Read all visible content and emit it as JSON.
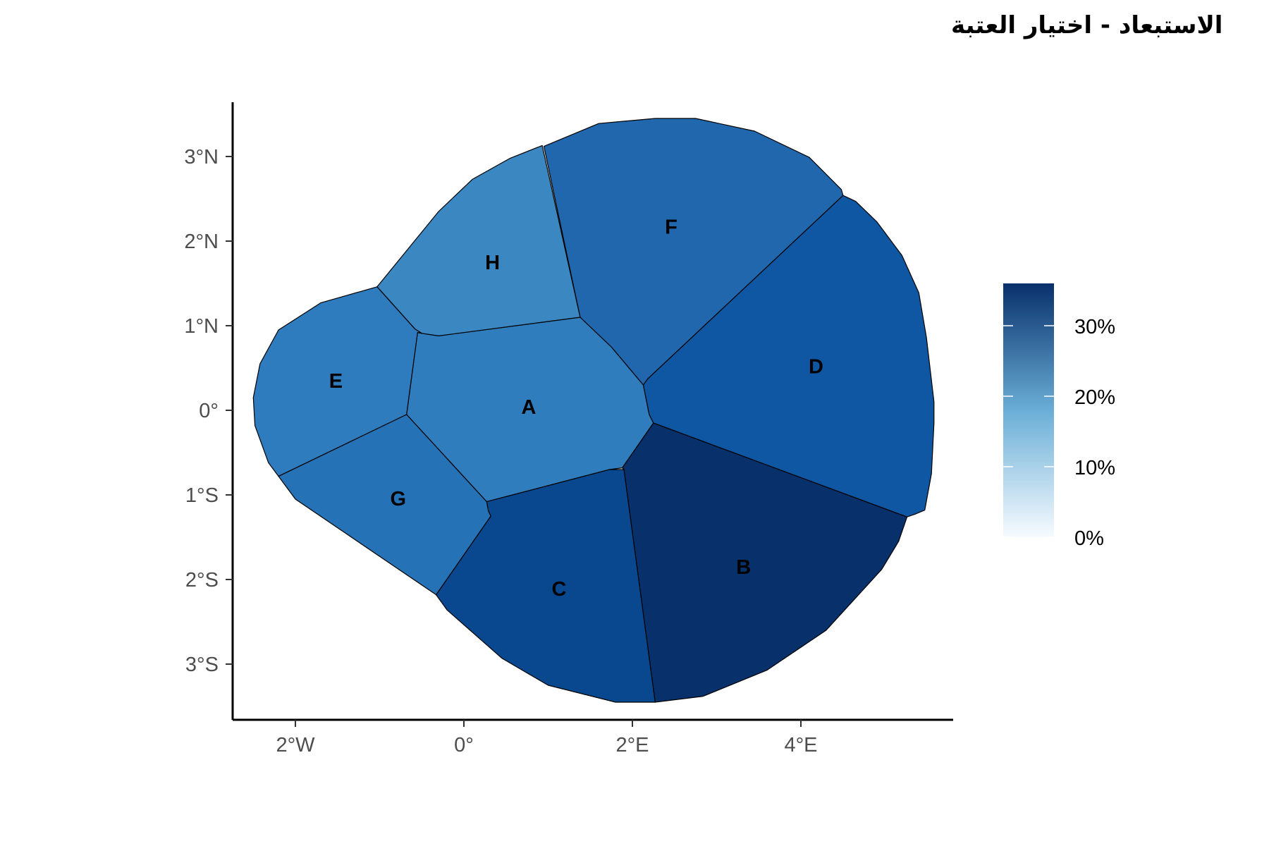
{
  "title": "الاستبعاد - اختيار العتبة",
  "map_data": {
    "type": "choropleth",
    "x_ticks": [
      {
        "value": -2,
        "label": "2°W"
      },
      {
        "value": 0,
        "label": "0°"
      },
      {
        "value": 2,
        "label": "2°E"
      },
      {
        "value": 4,
        "label": "4°E"
      }
    ],
    "y_ticks": [
      {
        "value": 3,
        "label": "3°N"
      },
      {
        "value": 2,
        "label": "2°N"
      },
      {
        "value": 1,
        "label": "1°N"
      },
      {
        "value": 0,
        "label": "0°"
      },
      {
        "value": -1,
        "label": "1°S"
      },
      {
        "value": -2,
        "label": "2°S"
      },
      {
        "value": -3,
        "label": "3°S"
      }
    ],
    "legend": {
      "placement": "right",
      "type": "continuous-colorbar",
      "range": [
        0,
        36
      ],
      "color_low": "#f7fbff",
      "color_high": "#08306b",
      "ticks": [
        {
          "value": 0,
          "label": "0%"
        },
        {
          "value": 10,
          "label": "10%"
        },
        {
          "value": 20,
          "label": "20%"
        },
        {
          "value": 30,
          "label": "30%"
        }
      ]
    },
    "regions": [
      {
        "name": "A",
        "value": 23,
        "color": "#2f7dbd",
        "label_at": [
          0.77,
          0.04
        ],
        "polygon": [
          [
            -0.3,
            0.88
          ],
          [
            1.38,
            1.1
          ],
          [
            1.75,
            0.75
          ],
          [
            2.13,
            0.3
          ],
          [
            2.2,
            -0.05
          ],
          [
            2.25,
            -0.15
          ],
          [
            1.88,
            -0.68
          ],
          [
            1.73,
            -0.7
          ],
          [
            0.27,
            -1.08
          ],
          [
            -0.68,
            -0.05
          ],
          [
            -0.55,
            0.92
          ],
          [
            -0.5,
            0.91
          ]
        ]
      },
      {
        "name": "B",
        "value": 36,
        "color": "#08306b",
        "label_at": [
          3.32,
          -1.85
        ],
        "polygon": [
          [
            2.25,
            -0.15
          ],
          [
            5.26,
            -1.26
          ],
          [
            5.16,
            -1.55
          ],
          [
            4.96,
            -1.88
          ],
          [
            4.3,
            -2.6
          ],
          [
            3.6,
            -3.07
          ],
          [
            2.84,
            -3.38
          ],
          [
            2.27,
            -3.45
          ],
          [
            1.9,
            -0.7
          ],
          [
            1.88,
            -0.68
          ]
        ]
      },
      {
        "name": "C",
        "value": 33,
        "color": "#09478f",
        "label_at": [
          1.13,
          -2.11
        ],
        "polygon": [
          [
            0.27,
            -1.08
          ],
          [
            1.73,
            -0.7
          ],
          [
            1.9,
            -0.7
          ],
          [
            2.27,
            -3.45
          ],
          [
            1.8,
            -3.45
          ],
          [
            1.0,
            -3.25
          ],
          [
            0.45,
            -2.93
          ],
          [
            -0.2,
            -2.36
          ],
          [
            -0.33,
            -2.18
          ],
          [
            0.32,
            -1.25
          ],
          [
            0.29,
            -1.19
          ]
        ]
      },
      {
        "name": "D",
        "value": 32,
        "color": "#0f57a3",
        "label_at": [
          4.18,
          0.52
        ],
        "polygon": [
          [
            4.5,
            2.54
          ],
          [
            4.65,
            2.47
          ],
          [
            4.9,
            2.23
          ],
          [
            5.2,
            1.83
          ],
          [
            5.4,
            1.39
          ],
          [
            5.49,
            0.86
          ],
          [
            5.58,
            0.1
          ],
          [
            5.58,
            -0.15
          ],
          [
            5.55,
            -0.75
          ],
          [
            5.47,
            -1.18
          ],
          [
            5.35,
            -1.23
          ],
          [
            5.26,
            -1.26
          ],
          [
            2.25,
            -0.15
          ],
          [
            2.2,
            -0.05
          ],
          [
            2.13,
            0.3
          ],
          [
            2.18,
            0.37
          ]
        ]
      },
      {
        "name": "F",
        "value": 28,
        "color": "#2067ae",
        "label_at": [
          2.46,
          2.17
        ],
        "polygon": [
          [
            0.95,
            3.12
          ],
          [
            1.6,
            3.39
          ],
          [
            2.27,
            3.45
          ],
          [
            2.75,
            3.45
          ],
          [
            3.45,
            3.3
          ],
          [
            4.1,
            2.99
          ],
          [
            4.48,
            2.61
          ],
          [
            4.5,
            2.54
          ],
          [
            2.18,
            0.37
          ],
          [
            2.13,
            0.3
          ],
          [
            1.75,
            0.75
          ],
          [
            1.38,
            1.1
          ]
        ]
      },
      {
        "name": "H",
        "value": 21,
        "color": "#3b87c2",
        "label_at": [
          0.34,
          1.75
        ],
        "polygon": [
          [
            -1.03,
            1.46
          ],
          [
            -0.3,
            2.35
          ],
          [
            0.1,
            2.73
          ],
          [
            0.55,
            2.98
          ],
          [
            0.93,
            3.13
          ],
          [
            1.38,
            1.1
          ],
          [
            -0.3,
            0.88
          ],
          [
            -0.5,
            0.91
          ],
          [
            -0.58,
            0.96
          ]
        ]
      },
      {
        "name": "E",
        "value": 23,
        "color": "#2e7cbd",
        "label_at": [
          -1.52,
          0.35
        ],
        "polygon": [
          [
            -1.03,
            1.46
          ],
          [
            -0.58,
            0.96
          ],
          [
            -0.5,
            0.91
          ],
          [
            -0.55,
            0.92
          ],
          [
            -0.68,
            -0.05
          ],
          [
            -2.2,
            -0.78
          ],
          [
            -2.32,
            -0.62
          ],
          [
            -2.48,
            -0.18
          ],
          [
            -2.5,
            0.15
          ],
          [
            -2.42,
            0.55
          ],
          [
            -2.2,
            0.95
          ],
          [
            -1.7,
            1.27
          ]
        ]
      },
      {
        "name": "G",
        "value": 27,
        "color": "#2672b6",
        "label_at": [
          -0.78,
          -1.04
        ],
        "polygon": [
          [
            -0.68,
            -0.05
          ],
          [
            0.27,
            -1.08
          ],
          [
            0.29,
            -1.19
          ],
          [
            0.32,
            -1.25
          ],
          [
            -0.33,
            -2.18
          ],
          [
            -2.0,
            -1.05
          ],
          [
            -2.2,
            -0.78
          ]
        ]
      }
    ]
  }
}
